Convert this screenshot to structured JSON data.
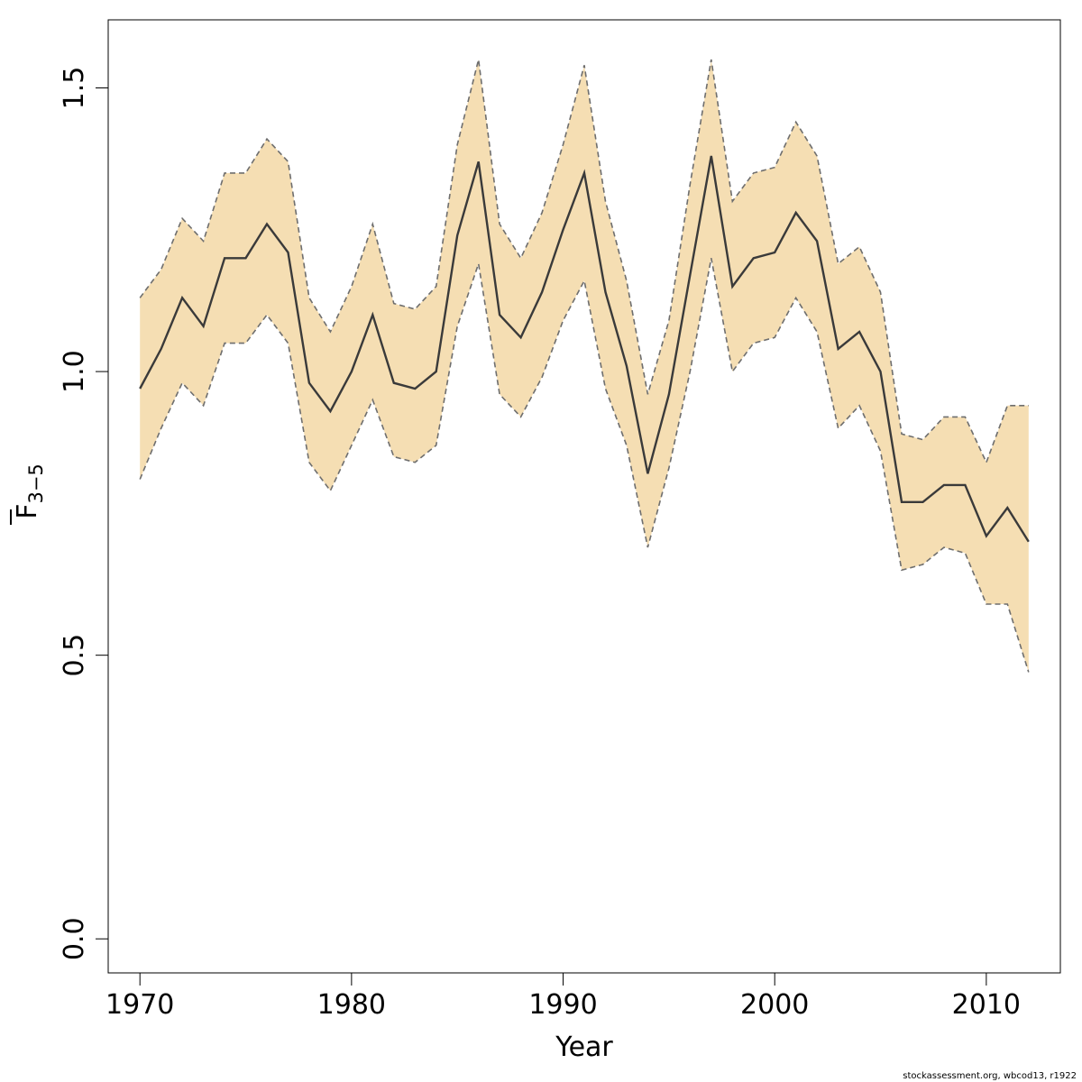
{
  "chart_data": {
    "type": "line",
    "xlabel": "Year",
    "ylabel_main": "F",
    "ylabel_sub": "3−5",
    "xlim": [
      1968.5,
      2013.5
    ],
    "ylim": [
      -0.06,
      1.62
    ],
    "x_ticks": [
      1970,
      1980,
      1990,
      2000,
      2010
    ],
    "x_tick_labels": [
      "1970",
      "1980",
      "1990",
      "2000",
      "2010"
    ],
    "y_ticks": [
      0.0,
      0.5,
      1.0,
      1.5
    ],
    "y_tick_labels": [
      "0.0",
      "0.5",
      "1.0",
      "1.5"
    ],
    "grid": false,
    "x": [
      1970,
      1971,
      1972,
      1973,
      1974,
      1975,
      1976,
      1977,
      1978,
      1979,
      1980,
      1981,
      1982,
      1983,
      1984,
      1985,
      1986,
      1987,
      1988,
      1989,
      1990,
      1991,
      1992,
      1993,
      1994,
      1995,
      1996,
      1997,
      1998,
      1999,
      2000,
      2001,
      2002,
      2003,
      2004,
      2005,
      2006,
      2007,
      2008,
      2009,
      2010,
      2011,
      2012
    ],
    "series": [
      {
        "values": [
          0.97,
          1.04,
          1.13,
          1.08,
          1.2,
          1.2,
          1.26,
          1.21,
          0.98,
          0.93,
          1.0,
          1.1,
          0.98,
          0.97,
          1.0,
          1.24,
          1.37,
          1.1,
          1.06,
          1.14,
          1.25,
          1.35,
          1.14,
          1.01,
          0.82,
          0.96,
          1.17,
          1.38,
          1.15,
          1.2,
          1.21,
          1.28,
          1.23,
          1.04,
          1.07,
          1.0,
          0.77,
          0.77,
          0.8,
          0.8,
          0.71,
          0.76,
          0.7
        ]
      }
    ],
    "band": {
      "lower": [
        0.81,
        0.9,
        0.98,
        0.94,
        1.05,
        1.05,
        1.1,
        1.05,
        0.84,
        0.79,
        0.87,
        0.95,
        0.85,
        0.84,
        0.87,
        1.08,
        1.19,
        0.96,
        0.92,
        0.99,
        1.09,
        1.16,
        0.97,
        0.87,
        0.69,
        0.83,
        1.0,
        1.2,
        1.0,
        1.05,
        1.06,
        1.13,
        1.07,
        0.9,
        0.94,
        0.86,
        0.65,
        0.66,
        0.69,
        0.68,
        0.59,
        0.59,
        0.47
      ],
      "upper": [
        1.13,
        1.18,
        1.27,
        1.23,
        1.35,
        1.35,
        1.41,
        1.37,
        1.13,
        1.07,
        1.15,
        1.26,
        1.12,
        1.11,
        1.15,
        1.4,
        1.55,
        1.26,
        1.2,
        1.28,
        1.4,
        1.54,
        1.3,
        1.16,
        0.96,
        1.09,
        1.33,
        1.55,
        1.3,
        1.35,
        1.36,
        1.44,
        1.38,
        1.19,
        1.22,
        1.14,
        0.89,
        0.88,
        0.92,
        0.92,
        0.84,
        0.94,
        0.94
      ]
    },
    "colors": {
      "band_fill": "#f5deb3",
      "band_edge": "#6e6e6e",
      "line": "#3a3a3a",
      "frame": "#000000"
    },
    "footer_text": "stockassessment.org, wbcod13, r1922"
  }
}
